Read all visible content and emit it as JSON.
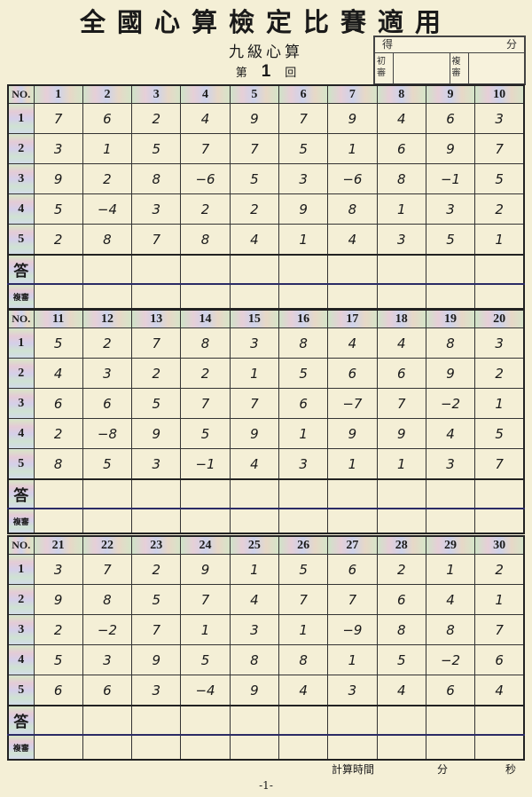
{
  "title": "全國心算檢定比賽適用",
  "subtitle": "九級心算",
  "round": {
    "prefix": "第",
    "number": "1",
    "suffix": "回"
  },
  "score_box": {
    "score_label_left": "得",
    "score_label_right": "分",
    "first_review": "初審",
    "second_review": "複審"
  },
  "row_labels": {
    "no": "NO.",
    "rows": [
      "1",
      "2",
      "3",
      "4",
      "5"
    ],
    "answer": "答",
    "review": "複審"
  },
  "sections": [
    {
      "questions": [
        "1",
        "2",
        "3",
        "4",
        "5",
        "6",
        "7",
        "8",
        "9",
        "10"
      ],
      "values": [
        [
          "7",
          "3",
          "9",
          "5",
          "2"
        ],
        [
          "6",
          "1",
          "2",
          "-4",
          "8"
        ],
        [
          "2",
          "5",
          "8",
          "3",
          "7"
        ],
        [
          "4",
          "7",
          "-6",
          "2",
          "8"
        ],
        [
          "9",
          "7",
          "5",
          "2",
          "4"
        ],
        [
          "7",
          "5",
          "3",
          "9",
          "1"
        ],
        [
          "9",
          "1",
          "-6",
          "8",
          "4"
        ],
        [
          "4",
          "6",
          "8",
          "1",
          "3"
        ],
        [
          "6",
          "9",
          "-1",
          "3",
          "5"
        ],
        [
          "3",
          "7",
          "5",
          "2",
          "1"
        ]
      ]
    },
    {
      "questions": [
        "11",
        "12",
        "13",
        "14",
        "15",
        "16",
        "17",
        "18",
        "19",
        "20"
      ],
      "values": [
        [
          "5",
          "4",
          "6",
          "2",
          "8"
        ],
        [
          "2",
          "3",
          "6",
          "-8",
          "5"
        ],
        [
          "7",
          "2",
          "5",
          "9",
          "3"
        ],
        [
          "8",
          "2",
          "7",
          "5",
          "-1"
        ],
        [
          "3",
          "1",
          "7",
          "9",
          "4"
        ],
        [
          "8",
          "5",
          "6",
          "1",
          "3"
        ],
        [
          "4",
          "6",
          "-7",
          "9",
          "1"
        ],
        [
          "4",
          "6",
          "7",
          "9",
          "1"
        ],
        [
          "8",
          "9",
          "-2",
          "4",
          "3"
        ],
        [
          "3",
          "2",
          "1",
          "5",
          "7"
        ]
      ]
    },
    {
      "questions": [
        "21",
        "22",
        "23",
        "24",
        "25",
        "26",
        "27",
        "28",
        "29",
        "30"
      ],
      "values": [
        [
          "3",
          "9",
          "2",
          "5",
          "6"
        ],
        [
          "7",
          "8",
          "-2",
          "3",
          "6"
        ],
        [
          "2",
          "5",
          "7",
          "9",
          "3"
        ],
        [
          "9",
          "7",
          "1",
          "5",
          "-4"
        ],
        [
          "1",
          "4",
          "3",
          "8",
          "9"
        ],
        [
          "5",
          "7",
          "1",
          "8",
          "4"
        ],
        [
          "6",
          "7",
          "-9",
          "1",
          "3"
        ],
        [
          "2",
          "6",
          "8",
          "5",
          "4"
        ],
        [
          "1",
          "4",
          "8",
          "-2",
          "6"
        ],
        [
          "2",
          "1",
          "7",
          "6",
          "4"
        ]
      ]
    }
  ],
  "footer": {
    "time_label": "計算時間",
    "minutes": "分",
    "seconds": "秒",
    "page": "-1-"
  }
}
